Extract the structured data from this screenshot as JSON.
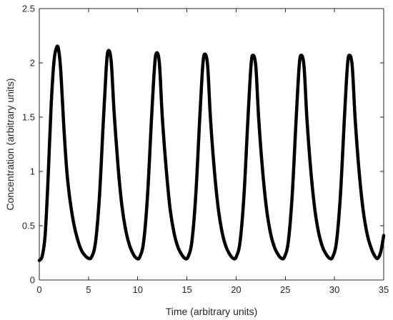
{
  "chart_data": {
    "type": "line",
    "title": "",
    "xlabel": "Time (arbitrary units)",
    "ylabel": "Concentration (arbitrary units)",
    "xlim": [
      0,
      35
    ],
    "ylim": [
      0,
      2.5
    ],
    "xticks": [
      0,
      5,
      10,
      15,
      20,
      25,
      30,
      35
    ],
    "yticks": [
      0,
      0.5,
      1,
      1.5,
      2,
      2.5
    ],
    "xtick_labels": [
      "0",
      "5",
      "10",
      "15",
      "20",
      "25",
      "30",
      "35"
    ],
    "ytick_labels": [
      "0",
      "0.5",
      "1",
      "1.5",
      "2",
      "2.5"
    ],
    "grid": false,
    "line_color": "#000000",
    "series": [
      {
        "x": [
          0,
          0.3,
          0.6,
          0.9,
          1.2,
          1.5,
          1.8,
          2.0,
          2.2,
          2.5,
          2.8,
          3.1,
          3.5,
          3.9,
          4.3,
          4.7,
          5.0,
          5.3,
          5.7,
          6.1,
          6.5,
          6.8,
          7.0,
          7.3,
          7.6,
          8.0,
          8.4,
          8.8,
          9.2,
          9.6,
          9.9,
          10.2,
          10.6,
          11.0,
          11.4,
          11.7,
          11.9,
          12.2,
          12.5,
          12.9,
          13.3,
          13.7,
          14.1,
          14.5,
          14.8,
          15.1,
          15.5,
          15.9,
          16.3,
          16.6,
          16.8,
          17.1,
          17.4,
          17.8,
          18.2,
          18.6,
          19.0,
          19.4,
          19.7,
          20.0,
          20.4,
          20.8,
          21.2,
          21.5,
          21.7,
          22.0,
          22.3,
          22.7,
          23.1,
          23.5,
          23.9,
          24.3,
          24.6,
          24.9,
          25.3,
          25.7,
          26.1,
          26.4,
          26.6,
          26.9,
          27.2,
          27.6,
          28.0,
          28.4,
          28.8,
          29.2,
          29.5,
          29.8,
          30.2,
          30.6,
          31.0,
          31.3,
          31.5,
          31.8,
          32.1,
          32.5,
          32.9,
          33.3,
          33.7,
          34.1,
          34.4,
          34.7,
          35.0
        ],
        "y": [
          0.18,
          0.22,
          0.42,
          0.95,
          1.6,
          2.02,
          2.15,
          2.1,
          1.9,
          1.4,
          1.0,
          0.75,
          0.52,
          0.37,
          0.27,
          0.22,
          0.2,
          0.21,
          0.34,
          0.75,
          1.45,
          1.95,
          2.11,
          2.02,
          1.55,
          1.05,
          0.68,
          0.45,
          0.31,
          0.23,
          0.2,
          0.21,
          0.35,
          0.78,
          1.48,
          1.95,
          2.09,
          2.0,
          1.5,
          1.02,
          0.65,
          0.43,
          0.3,
          0.23,
          0.2,
          0.21,
          0.35,
          0.78,
          1.48,
          1.96,
          2.08,
          1.98,
          1.48,
          1.0,
          0.65,
          0.43,
          0.3,
          0.23,
          0.2,
          0.21,
          0.35,
          0.78,
          1.48,
          1.96,
          2.07,
          1.97,
          1.48,
          1.0,
          0.65,
          0.43,
          0.3,
          0.23,
          0.2,
          0.21,
          0.35,
          0.78,
          1.48,
          1.96,
          2.07,
          1.97,
          1.48,
          1.0,
          0.65,
          0.43,
          0.3,
          0.23,
          0.2,
          0.21,
          0.35,
          0.78,
          1.48,
          1.96,
          2.07,
          1.97,
          1.48,
          1.0,
          0.65,
          0.43,
          0.3,
          0.22,
          0.2,
          0.26,
          0.41
        ]
      }
    ]
  }
}
